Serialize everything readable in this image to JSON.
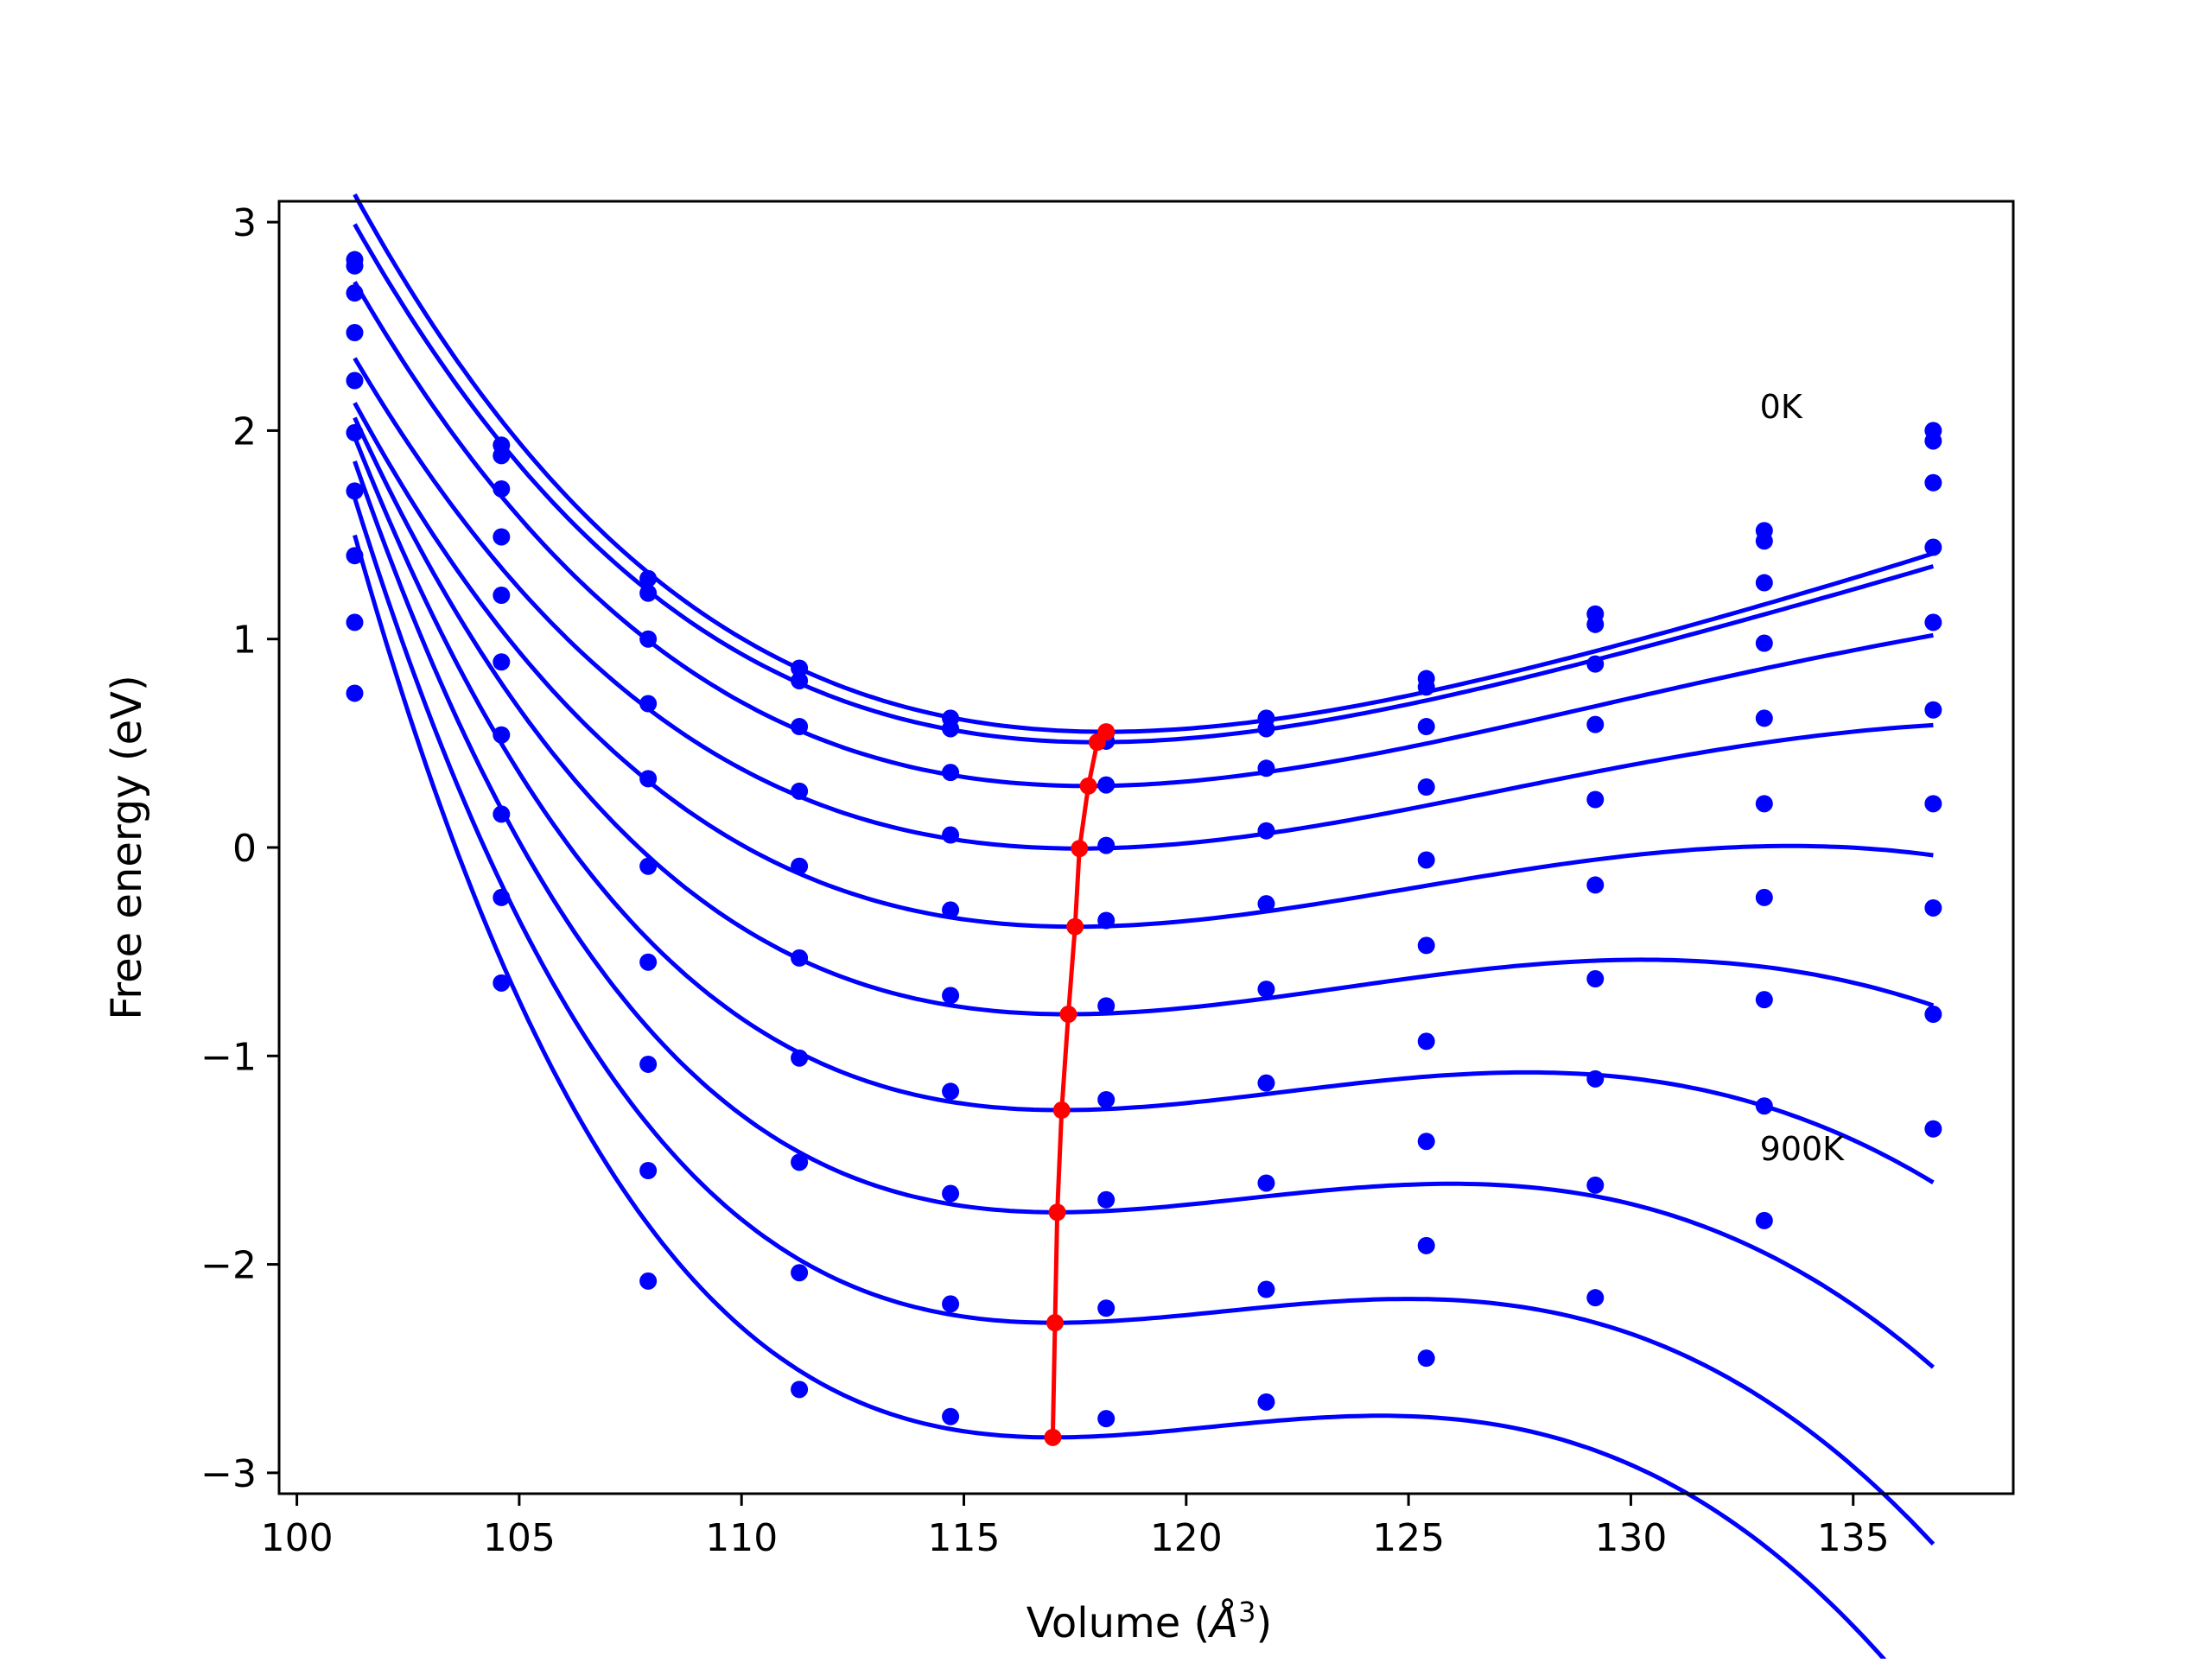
{
  "chart_data": {
    "type": "line",
    "xlabel_text": "Volume (",
    "xlabel_sym": "Å",
    "xlabel_sup": "3",
    "xlabel_close": ")",
    "ylabel": "Free energy (eV)",
    "xlim": [
      99.6,
      138.6
    ],
    "ylim": [
      -3.1,
      3.1
    ],
    "xticks": [
      100,
      105,
      110,
      115,
      120,
      125,
      130,
      135
    ],
    "xtick_labels": [
      "100",
      "105",
      "110",
      "115",
      "120",
      "125",
      "130",
      "135"
    ],
    "yticks": [
      -3,
      -2,
      -1,
      0,
      1,
      2,
      3
    ],
    "ytick_labels": [
      "−3",
      "−2",
      "−1",
      "0",
      "1",
      "2",
      "3"
    ],
    "grid": false,
    "annotations": [
      {
        "text": "0K",
        "x": 132.9,
        "y": 2.06
      },
      {
        "text": "900K",
        "x": 132.9,
        "y": -1.5
      }
    ],
    "x": [
      101.3,
      104.6,
      107.9,
      111.3,
      114.7,
      118.2,
      121.8,
      125.4,
      129.2,
      133.0,
      136.8
    ],
    "series": [
      {
        "values": [
          2.82,
          1.93,
          1.29,
          0.86,
          0.62,
          0.55,
          0.62,
          0.81,
          1.12,
          1.52,
          2.0
        ]
      },
      {
        "values": [
          2.79,
          1.88,
          1.22,
          0.8,
          0.57,
          0.51,
          0.57,
          0.77,
          1.07,
          1.47,
          1.95
        ]
      },
      {
        "values": [
          2.66,
          1.72,
          1.0,
          0.58,
          0.36,
          0.3,
          0.38,
          0.58,
          0.88,
          1.27,
          1.75
        ]
      },
      {
        "values": [
          2.47,
          1.49,
          0.69,
          0.27,
          0.06,
          0.01,
          0.08,
          0.29,
          0.59,
          0.98,
          1.44
        ]
      },
      {
        "values": [
          2.24,
          1.21,
          0.33,
          -0.09,
          -0.3,
          -0.35,
          -0.27,
          -0.06,
          0.23,
          0.62,
          1.08
        ]
      },
      {
        "values": [
          1.99,
          0.89,
          -0.09,
          -0.53,
          -0.71,
          -0.76,
          -0.68,
          -0.47,
          -0.18,
          0.21,
          0.66
        ]
      },
      {
        "values": [
          1.71,
          0.54,
          -0.55,
          -1.01,
          -1.17,
          -1.21,
          -1.13,
          -0.93,
          -0.63,
          -0.24,
          0.21
        ]
      },
      {
        "values": [
          1.4,
          0.16,
          -1.04,
          -1.51,
          -1.66,
          -1.69,
          -1.61,
          -1.41,
          -1.11,
          -0.73,
          -0.29
        ]
      },
      {
        "values": [
          1.08,
          -0.24,
          -1.55,
          -2.04,
          -2.19,
          -2.21,
          -2.12,
          -1.91,
          -1.62,
          -1.24,
          -0.8
        ]
      },
      {
        "values": [
          0.74,
          -0.65,
          -2.08,
          -2.6,
          -2.73,
          -2.74,
          -2.66,
          -2.45,
          -2.16,
          -1.79,
          -1.35
        ]
      }
    ],
    "fits": [
      {
        "vmin": 118.2,
        "emin": 0.555,
        "a": 0.0049,
        "b": 0.00019,
        "c": 3.2e-06
      },
      {
        "vmin": 118.0,
        "emin": 0.505,
        "a": 0.0049,
        "b": 0.00019,
        "c": 3e-06
      },
      {
        "vmin": 117.8,
        "emin": 0.295,
        "a": 0.0049,
        "b": 0.0002,
        "c": 2.5e-06
      },
      {
        "vmin": 117.6,
        "emin": -0.005,
        "a": 0.0049,
        "b": 0.00021,
        "c": 2e-06
      },
      {
        "vmin": 117.5,
        "emin": -0.38,
        "a": 0.005,
        "b": 0.00025,
        "c": 2e-06
      },
      {
        "vmin": 117.35,
        "emin": -0.8,
        "a": 0.0052,
        "b": 0.00032,
        "c": 3e-06
      },
      {
        "vmin": 117.2,
        "emin": -1.26,
        "a": 0.0054,
        "b": 0.0004,
        "c": 4e-06
      },
      {
        "vmin": 117.1,
        "emin": -1.75,
        "a": 0.0056,
        "b": 0.00048,
        "c": 5e-06
      },
      {
        "vmin": 117.05,
        "emin": -2.28,
        "a": 0.0058,
        "b": 0.00055,
        "c": 6e-06
      },
      {
        "vmin": 117.0,
        "emin": -2.83,
        "a": 0.0061,
        "b": 0.00062,
        "c": 7e-06
      }
    ],
    "minima": {
      "x": [
        118.2,
        118.0,
        117.8,
        117.6,
        117.5,
        117.35,
        117.2,
        117.1,
        117.05,
        117.0
      ],
      "y": [
        0.555,
        0.505,
        0.295,
        -0.005,
        -0.38,
        -0.8,
        -1.26,
        -1.75,
        -2.28,
        -2.83
      ]
    },
    "colors": {
      "data": "#0000ff",
      "minima": "#ff0000"
    }
  }
}
